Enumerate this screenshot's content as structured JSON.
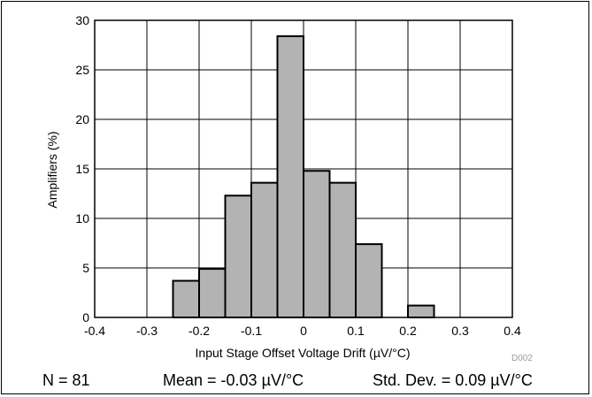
{
  "chart_data": {
    "type": "bar",
    "xlabel": "Input Stage Offset Voltage Drift (µV/°C)",
    "ylabel": "Amplifiers (%)",
    "xlim": [
      -0.4,
      0.4
    ],
    "ylim": [
      0,
      30
    ],
    "x_ticks": [
      "-0.4",
      "-0.3",
      "-0.2",
      "-0.1",
      "0",
      "0.1",
      "0.2",
      "0.3",
      "0.4"
    ],
    "y_ticks": [
      "0",
      "5",
      "10",
      "15",
      "20",
      "25",
      "30"
    ],
    "grid": true,
    "bin_width": 0.05,
    "bins": [
      {
        "start": -0.25,
        "end": -0.2,
        "value": 3.7
      },
      {
        "start": -0.2,
        "end": -0.15,
        "value": 4.9
      },
      {
        "start": -0.15,
        "end": -0.1,
        "value": 12.3
      },
      {
        "start": -0.1,
        "end": -0.05,
        "value": 13.6
      },
      {
        "start": -0.05,
        "end": 0.0,
        "value": 28.4
      },
      {
        "start": 0.0,
        "end": 0.05,
        "value": 14.8
      },
      {
        "start": 0.05,
        "end": 0.1,
        "value": 13.6
      },
      {
        "start": 0.1,
        "end": 0.15,
        "value": 7.4
      },
      {
        "start": 0.2,
        "end": 0.25,
        "value": 1.2
      }
    ],
    "bar_color": "#b3b3b3"
  },
  "stats": {
    "n": "N = 81",
    "mean": "Mean = -0.03 µV/°C",
    "std": "Std. Dev. = 0.09 µV/°C"
  },
  "figure_code": "D002"
}
